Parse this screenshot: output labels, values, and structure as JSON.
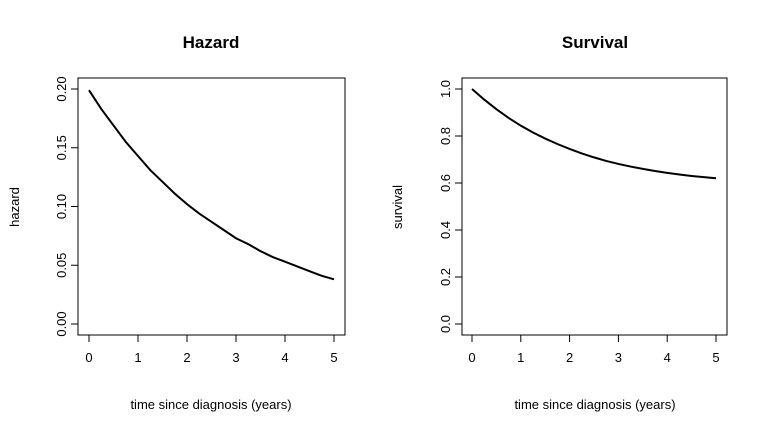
{
  "chart_data": [
    {
      "type": "line",
      "title": "Hazard",
      "xlabel": "time since diagnosis (years)",
      "ylabel": "hazard",
      "xlim": [
        0,
        5
      ],
      "ylim": [
        0,
        0.2
      ],
      "xticks": [
        0,
        1,
        2,
        3,
        4,
        5
      ],
      "xtick_labels": [
        "0",
        "1",
        "2",
        "3",
        "4",
        "5"
      ],
      "yticks": [
        0,
        0.05,
        0.1,
        0.15,
        0.2
      ],
      "ytick_labels": [
        "0.00",
        "0.05",
        "0.10",
        "0.15",
        "0.20"
      ],
      "grid": false,
      "color": "#000000",
      "series": [
        {
          "x": [
            0,
            0.25,
            0.5,
            0.75,
            1,
            1.25,
            1.5,
            1.75,
            2,
            2.25,
            2.5,
            2.75,
            3,
            3.25,
            3.5,
            3.75,
            4,
            4.25,
            4.5,
            4.75,
            5
          ],
          "values": [
            0.199,
            0.183,
            0.169,
            0.155,
            0.143,
            0.131,
            0.121,
            0.111,
            0.102,
            0.094,
            0.087,
            0.08,
            0.073,
            0.068,
            0.062,
            0.057,
            0.053,
            0.049,
            0.045,
            0.041,
            0.038
          ]
        }
      ]
    },
    {
      "type": "line",
      "title": "Survival",
      "xlabel": "time since diagnosis (years)",
      "ylabel": "survival",
      "xlim": [
        0,
        5
      ],
      "ylim": [
        0,
        1
      ],
      "xticks": [
        0,
        1,
        2,
        3,
        4,
        5
      ],
      "xtick_labels": [
        "0",
        "1",
        "2",
        "3",
        "4",
        "5"
      ],
      "yticks": [
        0,
        0.2,
        0.4,
        0.6,
        0.8,
        1
      ],
      "ytick_labels": [
        "0.0",
        "0.2",
        "0.4",
        "0.6",
        "0.8",
        "1.0"
      ],
      "grid": false,
      "color": "#000000",
      "series": [
        {
          "x": [
            0,
            0.25,
            0.5,
            0.75,
            1,
            1.25,
            1.5,
            1.75,
            2,
            2.25,
            2.5,
            2.75,
            3,
            3.25,
            3.5,
            3.75,
            4,
            4.25,
            4.5,
            4.75,
            5
          ],
          "values": [
            1.0,
            0.955,
            0.914,
            0.877,
            0.844,
            0.815,
            0.789,
            0.766,
            0.745,
            0.726,
            0.709,
            0.694,
            0.681,
            0.67,
            0.66,
            0.651,
            0.643,
            0.636,
            0.63,
            0.625,
            0.62
          ]
        }
      ]
    }
  ]
}
